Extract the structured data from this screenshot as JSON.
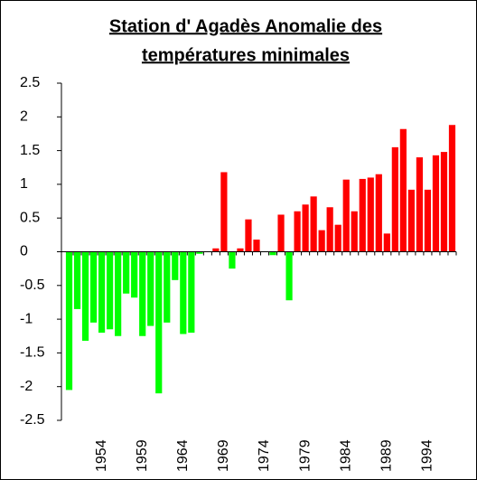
{
  "chart_data": {
    "type": "bar",
    "title": [
      "Station d' Agadès Anomalie des",
      "températures minimales"
    ],
    "categories": [
      null,
      null,
      null,
      null,
      "1954",
      null,
      null,
      null,
      null,
      "1959",
      null,
      null,
      null,
      null,
      "1964",
      null,
      null,
      null,
      null,
      "1969",
      null,
      null,
      null,
      null,
      "1974",
      null,
      null,
      null,
      null,
      "1979",
      null,
      null,
      null,
      null,
      "1984",
      null,
      null,
      null,
      null,
      "1989",
      null,
      null,
      null,
      null,
      "1994",
      null,
      null,
      null
    ],
    "values": [
      -2.05,
      -0.85,
      -1.32,
      -1.05,
      -1.2,
      -1.15,
      -1.25,
      -0.62,
      -0.68,
      -1.25,
      -1.1,
      -2.1,
      -1.05,
      -0.42,
      -1.22,
      -1.2,
      -0.03,
      0,
      0.05,
      1.18,
      -0.25,
      0.05,
      0.48,
      0.18,
      0,
      -0.05,
      0.55,
      -0.72,
      0.6,
      0.7,
      0.82,
      0.32,
      0.66,
      0.4,
      1.07,
      0.6,
      1.08,
      1.1,
      1.15,
      0.27,
      1.55,
      1.82,
      0.92,
      1.4,
      0.92,
      1.43,
      1.48,
      1.88
    ],
    "positive_color": "#ff0000",
    "negative_color": "#00ff00",
    "ylim": [
      -2.5,
      2.5
    ],
    "yticks": [
      -2.5,
      -2,
      -1.5,
      -1,
      -0.5,
      0,
      0.5,
      1,
      1.5,
      2,
      2.5
    ]
  }
}
